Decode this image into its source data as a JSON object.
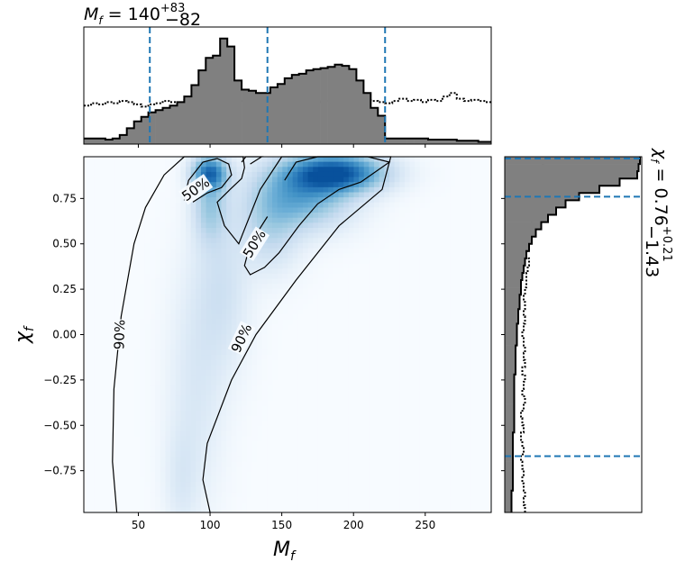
{
  "chart_data": [
    {
      "panel": "main",
      "type": "heatmap",
      "xlabel_main": "M",
      "xlabel_sub": "f",
      "ylabel_main": "χ",
      "ylabel_sub": "f",
      "xlim": [
        12,
        296
      ],
      "ylim": [
        -0.98,
        0.98
      ],
      "xticks": [
        50,
        100,
        150,
        200,
        250
      ],
      "xtick_labels": [
        "50",
        "100",
        "150",
        "200",
        "250"
      ],
      "yticks": [
        0.75,
        0.5,
        0.25,
        0.0,
        -0.25,
        -0.5,
        -0.75
      ],
      "ytick_labels": [
        "0.75",
        "0.50",
        "0.25",
        "0.00",
        "−0.25",
        "−0.50",
        "−0.75"
      ],
      "colormap": [
        "#f7fbff",
        "#deebf7",
        "#c6dbef",
        "#9ecae1",
        "#6baed6",
        "#4292c6",
        "#2171b5",
        "#08519c"
      ],
      "density_blobs": [
        {
          "x": 188,
          "y": 0.89,
          "sx": 22,
          "sy": 0.07,
          "w": 1.0
        },
        {
          "x": 165,
          "y": 0.77,
          "sx": 22,
          "sy": 0.12,
          "w": 0.55
        },
        {
          "x": 142,
          "y": 0.6,
          "sx": 14,
          "sy": 0.16,
          "w": 0.25
        },
        {
          "x": 100,
          "y": 0.89,
          "sx": 8,
          "sy": 0.06,
          "w": 0.8
        },
        {
          "x": 100,
          "y": 0.72,
          "sx": 8,
          "sy": 0.14,
          "w": 0.35
        },
        {
          "x": 108,
          "y": 0.25,
          "sx": 13,
          "sy": 0.3,
          "w": 0.16
        },
        {
          "x": 90,
          "y": -0.3,
          "sx": 13,
          "sy": 0.42,
          "w": 0.11
        },
        {
          "x": 80,
          "y": -0.8,
          "sx": 8,
          "sy": 0.2,
          "w": 0.09
        }
      ],
      "contours": [
        {
          "level": "90%",
          "points": [
            [
              35,
              -0.98
            ],
            [
              32,
              -0.7
            ],
            [
              33,
              -0.3
            ],
            [
              38,
              0.1
            ],
            [
              47,
              0.5
            ],
            [
              55,
              0.7
            ],
            [
              68,
              0.88
            ],
            [
              82,
              0.98
            ],
            [
              123,
              0.98
            ],
            [
              124,
              0.92
            ],
            [
              122,
              0.86
            ],
            [
              114,
              0.8
            ],
            [
              105,
              0.73
            ],
            [
              110,
              0.6
            ],
            [
              120,
              0.5
            ],
            [
              135,
              0.8
            ],
            [
              150,
              0.98
            ],
            [
              226,
              0.98
            ],
            [
              220,
              0.8
            ],
            [
              190,
              0.6
            ],
            [
              160,
              0.3
            ],
            [
              132,
              0.0
            ],
            [
              115,
              -0.25
            ],
            [
              98,
              -0.6
            ],
            [
              95,
              -0.8
            ],
            [
              100,
              -0.98
            ]
          ],
          "labels": [
            {
              "text": "90%",
              "x": 37,
              "y": 0.0,
              "rot": -88
            },
            {
              "text": "90%",
              "x": 122,
              "y": -0.02,
              "rot": -65
            }
          ]
        },
        {
          "level": "50%",
          "points": [
            [
              82,
              0.74
            ],
            [
              85,
              0.85
            ],
            [
              95,
              0.95
            ],
            [
              105,
              0.97
            ],
            [
              113,
              0.94
            ],
            [
              115,
              0.88
            ],
            [
              108,
              0.81
            ],
            [
              98,
              0.78
            ],
            [
              88,
              0.73
            ]
          ],
          "labels": [
            {
              "text": "50%",
              "x": 90,
              "y": 0.8,
              "rot": -35
            }
          ]
        },
        {
          "level": "50%",
          "points": [
            [
              152,
              0.85
            ],
            [
              160,
              0.95
            ],
            [
              175,
              0.98
            ],
            [
              210,
              0.98
            ],
            [
              225,
              0.95
            ],
            [
              205,
              0.84
            ],
            [
              190,
              0.8
            ],
            [
              175,
              0.72
            ],
            [
              162,
              0.6
            ],
            [
              148,
              0.45
            ],
            [
              138,
              0.37
            ],
            [
              128,
              0.33
            ],
            [
              124,
              0.38
            ],
            [
              128,
              0.5
            ],
            [
              140,
              0.65
            ]
          ],
          "labels": [
            {
              "text": "50%",
              "x": 131,
              "y": 0.5,
              "rot": -58
            }
          ]
        },
        {
          "level": "90%",
          "points": [
            [
              122,
              0.95
            ],
            [
              125,
              0.98
            ],
            [
              136,
              0.98
            ],
            [
              128,
              0.94
            ]
          ],
          "labels": []
        }
      ]
    },
    {
      "panel": "top",
      "type": "histogram",
      "title_main": "M",
      "title_sub": "f",
      "title_eq": " = 140",
      "title_sup": "+83",
      "title_subsc": "−82",
      "bin_start": 12,
      "bin_width": 5,
      "ymax": 1.0,
      "values": [
        0.05,
        0.05,
        0.05,
        0.04,
        0.05,
        0.08,
        0.14,
        0.2,
        0.24,
        0.28,
        0.3,
        0.32,
        0.34,
        0.37,
        0.42,
        0.52,
        0.65,
        0.76,
        0.78,
        0.93,
        0.86,
        0.56,
        0.48,
        0.47,
        0.45,
        0.45,
        0.5,
        0.53,
        0.58,
        0.61,
        0.62,
        0.65,
        0.66,
        0.67,
        0.68,
        0.7,
        0.69,
        0.66,
        0.56,
        0.45,
        0.32,
        0.25,
        0.05,
        0.05,
        0.05,
        0.05,
        0.05,
        0.05,
        0.04,
        0.04,
        0.04,
        0.04,
        0.03,
        0.03,
        0.03,
        0.02,
        0.02
      ],
      "prior": [
        0.34,
        0.36,
        0.35,
        0.37,
        0.36,
        0.38,
        0.37,
        0.35,
        0.33,
        0.35,
        0.36,
        0.38,
        0.37,
        0.36,
        0.39,
        0.37,
        0.38,
        0.37,
        0.39,
        0.38,
        0.4,
        0.37,
        0.38,
        0.39,
        0.37,
        0.39,
        0.38,
        0.37,
        0.38,
        0.4,
        0.39,
        0.38,
        0.37,
        0.39,
        0.38,
        0.4,
        0.39,
        0.38,
        0.37,
        0.39,
        0.38,
        0.37,
        0.36,
        0.38,
        0.4,
        0.38,
        0.39,
        0.37,
        0.39,
        0.38,
        0.42,
        0.45,
        0.4,
        0.38,
        0.39,
        0.38,
        0.37
      ],
      "quantile_lines": [
        58,
        140,
        222
      ],
      "color_fill": "#808080",
      "color_line": "#1f77b4"
    },
    {
      "panel": "right",
      "type": "histogram",
      "title_main": "χ",
      "title_sub": "f",
      "title_eq": " = 0.76",
      "title_sup": "+0.21",
      "title_subsc": "−1.43",
      "orientation": "horizontal",
      "bin_start": -0.98,
      "bin_width": 0.04,
      "values": [
        0.05,
        0.05,
        0.05,
        0.06,
        0.06,
        0.06,
        0.06,
        0.06,
        0.06,
        0.06,
        0.06,
        0.07,
        0.07,
        0.07,
        0.07,
        0.07,
        0.07,
        0.07,
        0.07,
        0.08,
        0.08,
        0.08,
        0.08,
        0.09,
        0.09,
        0.09,
        0.1,
        0.1,
        0.11,
        0.11,
        0.12,
        0.12,
        0.13,
        0.14,
        0.15,
        0.16,
        0.18,
        0.2,
        0.23,
        0.27,
        0.32,
        0.38,
        0.45,
        0.55,
        0.7,
        0.85,
        0.98,
        0.99,
        1.0
      ],
      "prior": [
        0.15,
        0.14,
        0.15,
        0.14,
        0.13,
        0.14,
        0.13,
        0.12,
        0.14,
        0.13,
        0.12,
        0.14,
        0.13,
        0.12,
        0.14,
        0.15,
        0.13,
        0.14,
        0.15,
        0.13,
        0.15,
        0.14,
        0.15,
        0.14,
        0.13,
        0.14,
        0.15,
        0.14,
        0.15,
        0.14,
        0.15,
        0.16,
        0.16,
        0.17,
        0.18,
        0.16,
        0.17,
        0.18,
        0.2,
        0.21,
        0.2,
        0.22,
        0.23,
        0.22,
        0.24,
        0.25,
        0.27,
        0.28,
        0.3
      ],
      "quantile_lines": [
        -0.67,
        0.76,
        0.97
      ],
      "color_fill": "#808080",
      "color_line": "#1f77b4"
    }
  ]
}
